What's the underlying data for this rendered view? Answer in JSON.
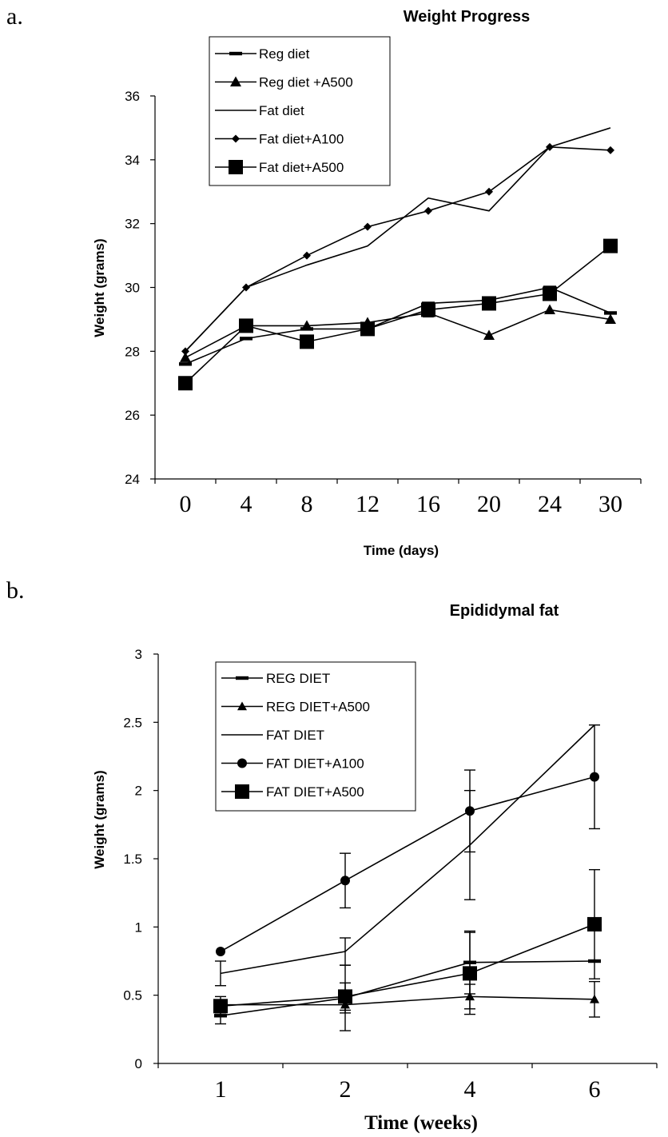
{
  "panels": {
    "a": "a.",
    "b": "b."
  },
  "chart_data": [
    {
      "type": "line",
      "title": "Weight Progress",
      "xlabel": "Time (days)",
      "ylabel": "Weight (grams)",
      "categories": [
        "0",
        "4",
        "8",
        "12",
        "16",
        "20",
        "24",
        "30"
      ],
      "ylim": [
        24,
        36
      ],
      "yticks": [
        "24",
        "26",
        "28",
        "30",
        "32",
        "34",
        "36"
      ],
      "legend_position": "top-left",
      "series": [
        {
          "name": "Reg diet",
          "marker": "dash",
          "values": [
            27.6,
            28.4,
            28.7,
            28.7,
            29.5,
            29.6,
            30.0,
            29.2
          ]
        },
        {
          "name": "Reg diet +A500",
          "marker": "triangle",
          "values": [
            27.8,
            28.8,
            28.8,
            28.9,
            29.2,
            28.5,
            29.3,
            29.0
          ]
        },
        {
          "name": "Fat diet",
          "marker": "none",
          "values": [
            28.0,
            30.0,
            30.7,
            31.3,
            32.8,
            32.4,
            34.4,
            35.0
          ]
        },
        {
          "name": "Fat diet+A100",
          "marker": "diamond",
          "values": [
            28.0,
            30.0,
            31.0,
            31.9,
            32.4,
            33.0,
            34.4,
            34.3
          ]
        },
        {
          "name": "Fat diet+A500",
          "marker": "square",
          "values": [
            27.0,
            28.8,
            28.3,
            28.7,
            29.3,
            29.5,
            29.8,
            31.3
          ]
        }
      ]
    },
    {
      "type": "line",
      "title": "Epididymal fat",
      "xlabel": "Time (weeks)",
      "ylabel": "Weight (grams)",
      "categories": [
        "1",
        "2",
        "4",
        "6"
      ],
      "ylim": [
        0,
        3
      ],
      "yticks": [
        "0",
        "0.5",
        "1",
        "1.5",
        "2",
        "2.5",
        "3"
      ],
      "legend_position": "top-left",
      "series": [
        {
          "name": "REG DIET",
          "marker": "dash",
          "values": [
            0.35,
            0.48,
            0.74,
            0.75
          ],
          "error": [
            0.06,
            0.24,
            0.23,
            0.0
          ]
        },
        {
          "name": "REG DIET+A500",
          "marker": "triangle",
          "values": [
            0.43,
            0.43,
            0.49,
            0.47
          ],
          "error": [
            0.06,
            0.06,
            0.09,
            0.13
          ]
        },
        {
          "name": "FAT DIET",
          "marker": "none",
          "values": [
            0.66,
            0.82,
            1.6,
            2.48
          ],
          "error": [
            0.09,
            0.1,
            0.4,
            0.0
          ]
        },
        {
          "name": "FAT DIET+A100",
          "marker": "circle",
          "values": [
            0.82,
            1.34,
            1.85,
            2.1
          ],
          "error": [
            0.0,
            0.2,
            0.3,
            0.38
          ]
        },
        {
          "name": "FAT DIET+A500",
          "marker": "square",
          "values": [
            0.42,
            0.49,
            0.66,
            1.02
          ],
          "error": [
            0.0,
            0.1,
            0.3,
            0.4
          ]
        }
      ]
    }
  ]
}
